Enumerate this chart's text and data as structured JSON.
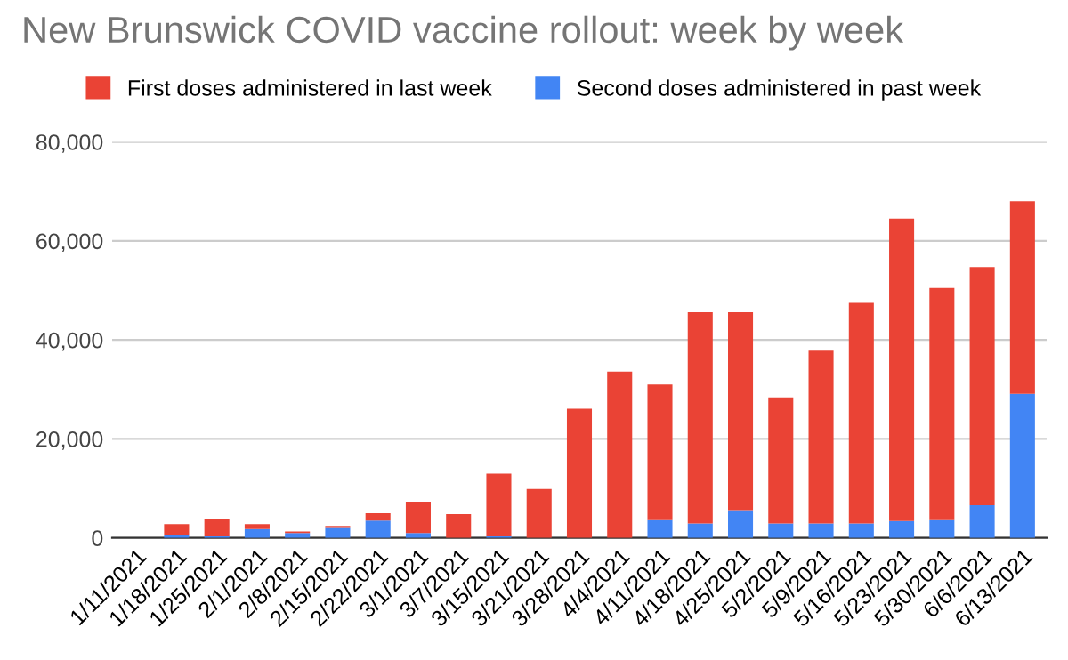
{
  "chart_data": {
    "type": "bar",
    "title": "New Brunswick COVID vaccine rollout: week by week",
    "stacked": true,
    "categories": [
      "1/11/2021",
      "1/18/2021",
      "1/25/2021",
      "2/1/2021",
      "2/8/2021",
      "2/15/2021",
      "2/22/2021",
      "3/1/2021",
      "3/7/2021",
      "3/15/2021",
      "3/21/2021",
      "3/28/2021",
      "4/4/2021",
      "4/11/2021",
      "4/18/2021",
      "4/25/2021",
      "5/2/2021",
      "5/9/2021",
      "5/16/2021",
      "5/23/2021",
      "5/30/2021",
      "6/6/2021",
      "6/13/2021"
    ],
    "series": [
      {
        "name": "Second doses administered in past week",
        "color": "#4285f4",
        "values": [
          0,
          500,
          300,
          1800,
          1000,
          2000,
          3500,
          1000,
          0,
          300,
          0,
          0,
          0,
          3600,
          2900,
          5600,
          2900,
          2900,
          2900,
          3400,
          3600,
          6600,
          29100
        ]
      },
      {
        "name": "First doses administered in last week",
        "color": "#ea4335",
        "values": [
          0,
          2300,
          3600,
          1000,
          300,
          400,
          1500,
          6300,
          4800,
          12700,
          9900,
          26100,
          33600,
          27400,
          42700,
          40000,
          25500,
          34900,
          44600,
          61100,
          46900,
          48100,
          38900
        ]
      }
    ],
    "ylim": [
      0,
      80000
    ],
    "yticks": [
      {
        "value": 0,
        "label": "0"
      },
      {
        "value": 20000,
        "label": "20,000"
      },
      {
        "value": 40000,
        "label": "40,000"
      },
      {
        "value": 60000,
        "label": "60,000"
      },
      {
        "value": 80000,
        "label": "80,000"
      }
    ],
    "grid": "y",
    "legend": "top"
  }
}
